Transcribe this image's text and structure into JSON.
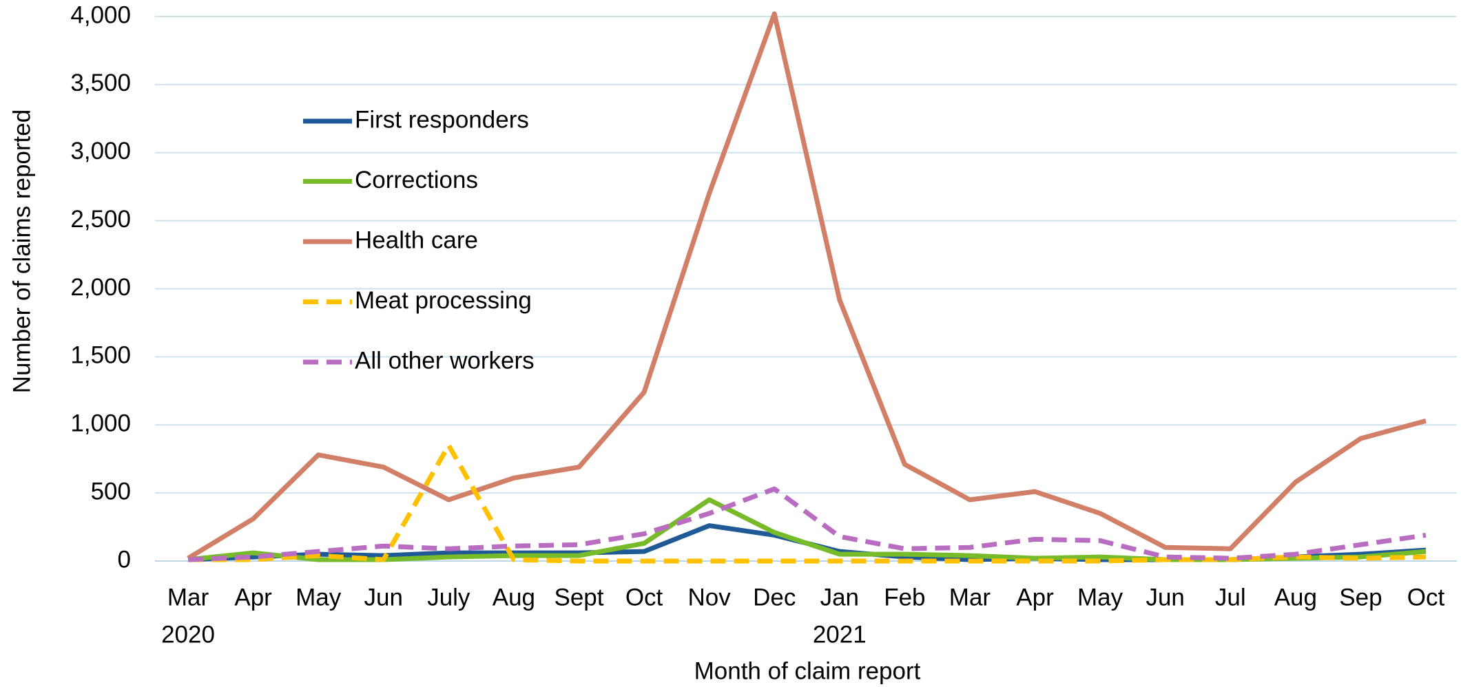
{
  "chart_data": {
    "type": "line",
    "x_label": "Month of claim report",
    "y_label": "Number of claims reported",
    "categories": [
      "Mar",
      "Apr",
      "May",
      "Jun",
      "July",
      "Aug",
      "Sept",
      "Oct",
      "Nov",
      "Dec",
      "Jan",
      "Feb",
      "Mar",
      "Apr",
      "May",
      "Jun",
      "Jul",
      "Aug",
      "Sep",
      "Oct"
    ],
    "category_years": [
      "2020",
      null,
      null,
      null,
      null,
      null,
      null,
      null,
      null,
      null,
      "2021",
      null,
      null,
      null,
      null,
      null,
      null,
      null,
      null,
      null
    ],
    "ylim": [
      0,
      4000
    ],
    "yticks": [
      0,
      500,
      {
        "value": 1000,
        "label": "1,000"
      },
      {
        "value": 1500,
        "label": "1,500"
      },
      {
        "value": 2000,
        "label": "2,000"
      },
      {
        "value": 2500,
        "label": "2,500"
      },
      {
        "value": 3000,
        "label": "3,000"
      },
      {
        "value": 3500,
        "label": "3,500"
      },
      {
        "value": 4000,
        "label": "4,000"
      }
    ],
    "grid": true,
    "legend": "upper left",
    "series": [
      {
        "name": "First responders",
        "color": "#1f5a96",
        "dashed": false,
        "values": [
          10,
          30,
          50,
          40,
          60,
          60,
          60,
          70,
          260,
          190,
          70,
          30,
          10,
          20,
          10,
          10,
          10,
          30,
          50,
          80
        ]
      },
      {
        "name": "Corrections",
        "color": "#77bb2a",
        "dashed": false,
        "values": [
          10,
          60,
          10,
          10,
          30,
          40,
          40,
          130,
          450,
          210,
          50,
          50,
          40,
          20,
          30,
          10,
          10,
          20,
          30,
          70
        ]
      },
      {
        "name": "Health care",
        "color": "#d27f68",
        "dashed": false,
        "values": [
          20,
          310,
          780,
          690,
          450,
          610,
          690,
          1240,
          2700,
          4020,
          1920,
          710,
          450,
          510,
          350,
          100,
          90,
          580,
          900,
          1030
        ]
      },
      {
        "name": "Meat processing",
        "color": "#ffc000",
        "dashed": true,
        "values": [
          10,
          10,
          40,
          10,
          850,
          10,
          0,
          0,
          0,
          0,
          0,
          0,
          0,
          0,
          0,
          10,
          10,
          30,
          20,
          30
        ]
      },
      {
        "name": "All other workers",
        "color": "#b86dc0",
        "dashed": true,
        "values": [
          10,
          30,
          70,
          110,
          90,
          110,
          120,
          200,
          350,
          530,
          180,
          90,
          100,
          160,
          150,
          30,
          20,
          50,
          120,
          190
        ]
      }
    ]
  }
}
